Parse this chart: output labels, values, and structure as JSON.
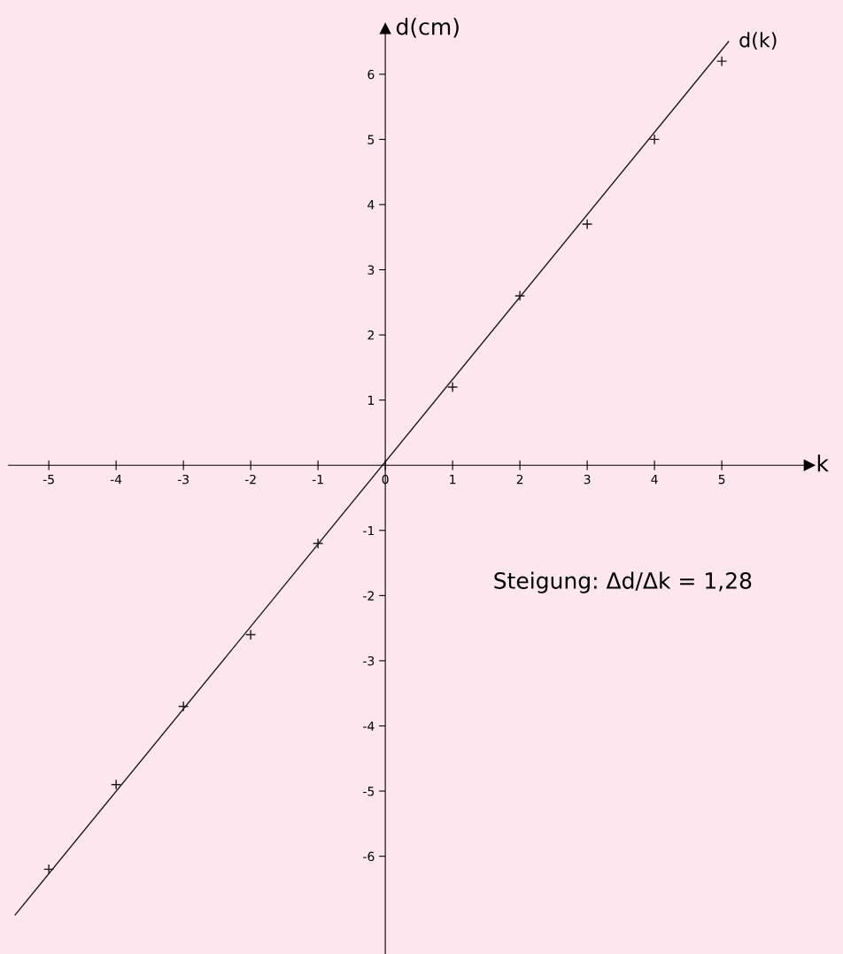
{
  "chart_data": {
    "type": "scatter",
    "xlabel": "k",
    "ylabel": "d(cm)",
    "x": [
      -5,
      -4,
      -3,
      -2,
      -1,
      1,
      2,
      3,
      4,
      5
    ],
    "series": [
      {
        "color": "#1a1a1a",
        "marker": "cross",
        "values": [
          -6.2,
          -4.9,
          -3.7,
          -2.6,
          -1.2,
          1.2,
          2.6,
          3.7,
          5.0,
          6.2
        ]
      },
      {
        "type": "line",
        "name": "d(k)",
        "color": "#1a1a1a",
        "marker": "none",
        "line_style": "solid",
        "x": [
          -5.5,
          5.1
        ],
        "values": [
          -6.9,
          6.5
        ]
      }
    ],
    "xlim": [
      -5.6,
      6.3
    ],
    "ylim": [
      -7.5,
      6.7
    ],
    "xticks": [
      -5,
      -4,
      -3,
      -2,
      -1,
      {
        "value": 0,
        "label": "0"
      },
      1,
      2,
      3,
      4,
      5
    ],
    "yticks": [
      -6,
      -5,
      -4,
      -3,
      -2,
      -1,
      1,
      2,
      3,
      4,
      5,
      6
    ],
    "annotations": [
      "Steigung: Δd/Δk = 1,28"
    ]
  }
}
